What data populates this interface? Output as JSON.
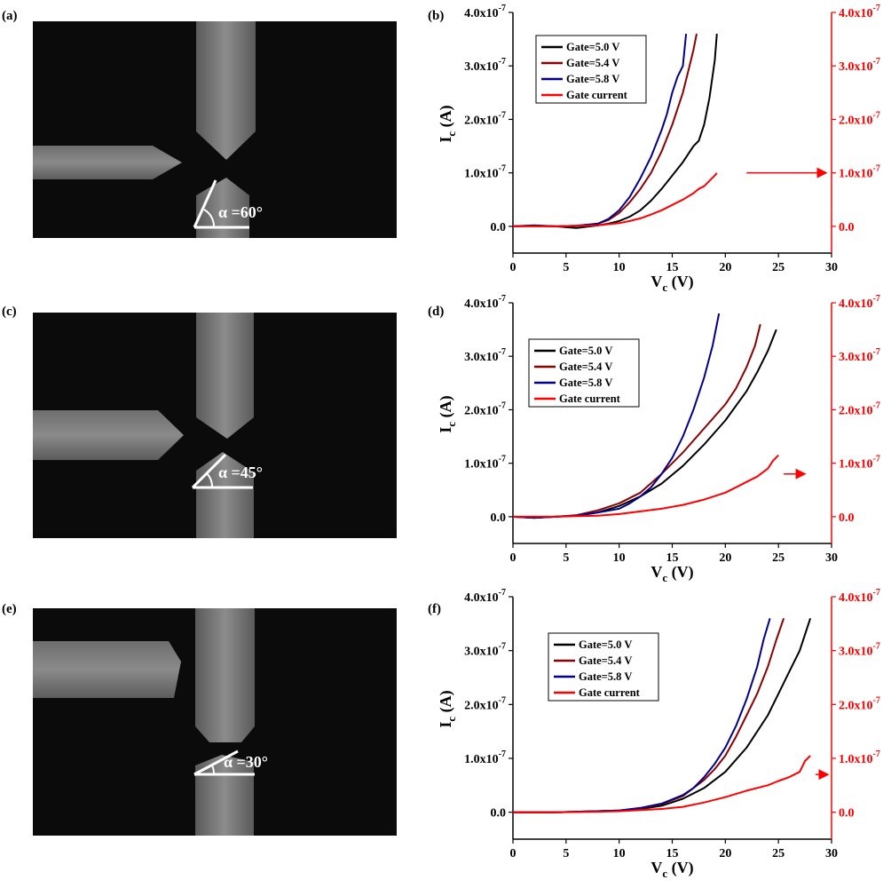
{
  "panel_labels": [
    "(a)",
    "(b)",
    "(c)",
    "(d)",
    "(e)",
    "(f)"
  ],
  "micrographs": [
    {
      "angle_label": "α =60°",
      "angle_deg": 60
    },
    {
      "angle_label": "α =45°",
      "angle_deg": 45
    },
    {
      "angle_label": "α =30°",
      "angle_deg": 30
    }
  ],
  "colors": {
    "gate_5_0": "#000000",
    "gate_5_4": "#8b0000",
    "gate_5_8": "#00008b",
    "gate_current": "#ff0000",
    "right_axis": "#ff0000"
  },
  "chart_data": [
    {
      "type": "line",
      "panel": "(b)",
      "xlabel_main": "V",
      "xlabel_sub": "c",
      "xlabel_unit": " (V)",
      "ylabel_main": "I",
      "ylabel_sub": "c",
      "ylabel_unit": " (A)",
      "xlim": [
        0,
        30
      ],
      "ylim": [
        -0.05,
        0.4
      ],
      "ylim_right": [
        -0.05,
        0.4
      ],
      "xticks": [
        0,
        5,
        10,
        15,
        20,
        25,
        30
      ],
      "yticks_left": [
        "0.0",
        "1.0x10",
        "2.0x10",
        "3.0x10",
        "4.0x10"
      ],
      "yticks_right": [
        "0.0",
        "1.0x10",
        "2.0x10",
        "3.0x10",
        "4.0x10"
      ],
      "ytick_exponent": "-7",
      "ytick_values": [
        0,
        0.1,
        0.2,
        0.3,
        0.4
      ],
      "y_scale_note": "y values in units of 1e-6 A",
      "legend": [
        "Gate=5.0 V",
        "Gate=5.4 V",
        "Gate=5.8 V",
        "Gate current"
      ],
      "legend_position": "top-left",
      "arrow": {
        "x_from": 22,
        "x_to": 29.5,
        "y": 0.1
      },
      "series": [
        {
          "name": "Gate=5.0 V",
          "x": [
            0,
            2,
            4,
            6,
            8,
            9,
            10,
            11,
            12,
            13,
            14,
            15,
            16,
            17,
            17.5,
            18,
            18.5,
            19,
            19.2
          ],
          "y": [
            0,
            0.002,
            0,
            -0.003,
            0.002,
            0.005,
            0.01,
            0.018,
            0.03,
            0.048,
            0.07,
            0.095,
            0.12,
            0.15,
            0.16,
            0.19,
            0.24,
            0.31,
            0.36
          ]
        },
        {
          "name": "Gate=5.4 V",
          "x": [
            0,
            2,
            4,
            6,
            8,
            9,
            10,
            11,
            12,
            13,
            14,
            15,
            16,
            16.5,
            17,
            17.3
          ],
          "y": [
            0,
            0.001,
            0,
            0.001,
            0.005,
            0.012,
            0.025,
            0.045,
            0.07,
            0.1,
            0.14,
            0.19,
            0.25,
            0.29,
            0.33,
            0.36
          ]
        },
        {
          "name": "Gate=5.8 V",
          "x": [
            0,
            2,
            4,
            6,
            8,
            9,
            10,
            11,
            12,
            13,
            14,
            14.5,
            15,
            15.5,
            16,
            16.3
          ],
          "y": [
            0,
            0.001,
            0,
            0.001,
            0.005,
            0.014,
            0.03,
            0.055,
            0.09,
            0.13,
            0.18,
            0.21,
            0.25,
            0.28,
            0.3,
            0.36
          ]
        },
        {
          "name": "Gate current",
          "x": [
            0,
            2,
            4,
            6,
            8,
            10,
            11,
            12,
            13,
            14,
            15,
            16,
            17,
            17.5,
            18,
            18.5,
            19,
            19.2
          ],
          "y": [
            0,
            0,
            0,
            0.001,
            0.002,
            0.006,
            0.01,
            0.015,
            0.022,
            0.03,
            0.04,
            0.05,
            0.062,
            0.07,
            0.075,
            0.085,
            0.095,
            0.1
          ]
        }
      ]
    },
    {
      "type": "line",
      "panel": "(d)",
      "xlabel_main": "V",
      "xlabel_sub": "c",
      "xlabel_unit": " (V)",
      "ylabel_main": "I",
      "ylabel_sub": "c",
      "ylabel_unit": " (A)",
      "xlim": [
        0,
        30
      ],
      "ylim": [
        -0.05,
        0.4
      ],
      "ylim_right": [
        -0.05,
        0.4
      ],
      "xticks": [
        0,
        5,
        10,
        15,
        20,
        25,
        30
      ],
      "yticks_left": [
        "0.0",
        "1.0x10",
        "2.0x10",
        "3.0x10",
        "4.0x10"
      ],
      "yticks_right": [
        "0.0",
        "1.0x10",
        "2.0x10",
        "3.0x10",
        "4.0x10"
      ],
      "ytick_exponent": "-7",
      "ytick_values": [
        0,
        0.1,
        0.2,
        0.3,
        0.4
      ],
      "y_scale_note": "y values in units of 1e-6 A",
      "legend": [
        "Gate=5.0 V",
        "Gate=5.4 V",
        "Gate=5.8 V",
        "Gate current"
      ],
      "legend_position": "top-left",
      "arrow": {
        "x_from": 25.5,
        "x_to": 27.5,
        "y": 0.08
      },
      "series": [
        {
          "name": "Gate=5.0 V",
          "x": [
            0,
            2,
            4,
            6,
            8,
            10,
            12,
            14,
            16,
            18,
            20,
            22,
            23,
            24,
            24.8
          ],
          "y": [
            0,
            -0.002,
            0,
            0.002,
            0.008,
            0.02,
            0.038,
            0.062,
            0.095,
            0.135,
            0.18,
            0.235,
            0.27,
            0.31,
            0.35
          ]
        },
        {
          "name": "Gate=5.4 V",
          "x": [
            0,
            2,
            4,
            6,
            8,
            10,
            12,
            14,
            16,
            18,
            20,
            21,
            22,
            22.8,
            23.3
          ],
          "y": [
            0,
            -0.002,
            0,
            0.003,
            0.012,
            0.025,
            0.045,
            0.08,
            0.12,
            0.165,
            0.21,
            0.24,
            0.28,
            0.32,
            0.36
          ]
        },
        {
          "name": "Gate=5.8 V",
          "x": [
            0,
            2,
            4,
            6,
            8,
            10,
            11,
            12,
            13,
            14,
            15,
            16,
            17,
            18,
            18.8,
            19.4
          ],
          "y": [
            0,
            -0.002,
            0,
            0.002,
            0.008,
            0.015,
            0.025,
            0.038,
            0.055,
            0.08,
            0.11,
            0.15,
            0.2,
            0.26,
            0.32,
            0.38
          ]
        },
        {
          "name": "Gate current",
          "x": [
            0,
            4,
            8,
            10,
            12,
            14,
            16,
            18,
            20,
            21,
            22,
            23,
            24,
            24.5,
            25
          ],
          "y": [
            0,
            0,
            0.002,
            0.005,
            0.01,
            0.015,
            0.022,
            0.032,
            0.045,
            0.055,
            0.065,
            0.075,
            0.09,
            0.105,
            0.115
          ]
        }
      ]
    },
    {
      "type": "line",
      "panel": "(f)",
      "xlabel_main": "V",
      "xlabel_sub": "c",
      "xlabel_unit": " (V)",
      "ylabel_main": "I",
      "ylabel_sub": "c",
      "ylabel_unit": " (A)",
      "xlim": [
        0,
        30
      ],
      "ylim": [
        -0.05,
        0.4
      ],
      "ylim_right": [
        -0.05,
        0.4
      ],
      "xticks": [
        0,
        5,
        10,
        15,
        20,
        25,
        30
      ],
      "yticks_left": [
        "0.0",
        "1.0x10",
        "2.0x10",
        "3.0x10",
        "4.0x10"
      ],
      "yticks_right": [
        "0.0",
        "1.0x10",
        "2.0x10",
        "3.0x10",
        "4.0x10"
      ],
      "ytick_exponent": "-7",
      "ytick_values": [
        0,
        0.1,
        0.2,
        0.3,
        0.4
      ],
      "y_scale_note": "y values in units of 1e-6 A",
      "legend": [
        "Gate=5.0 V",
        "Gate=5.4 V",
        "Gate=5.8 V",
        "Gate current"
      ],
      "legend_position": "top-left",
      "arrow": {
        "x_from": 28.5,
        "x_to": 30,
        "y": 0.07
      },
      "series": [
        {
          "name": "Gate=5.0 V",
          "x": [
            0,
            4,
            8,
            10,
            12,
            14,
            16,
            18,
            20,
            22,
            24,
            25,
            26,
            27,
            27.5,
            28
          ],
          "y": [
            0,
            0,
            0.002,
            0.003,
            0.006,
            0.012,
            0.025,
            0.045,
            0.075,
            0.12,
            0.18,
            0.22,
            0.26,
            0.3,
            0.33,
            0.36
          ]
        },
        {
          "name": "Gate=5.4 V",
          "x": [
            0,
            4,
            8,
            10,
            12,
            14,
            16,
            18,
            19,
            20,
            21,
            22,
            23,
            24,
            24.8,
            25.5
          ],
          "y": [
            0,
            0,
            0.002,
            0.003,
            0.007,
            0.015,
            0.03,
            0.06,
            0.08,
            0.105,
            0.14,
            0.18,
            0.22,
            0.27,
            0.32,
            0.36
          ]
        },
        {
          "name": "Gate=5.8 V",
          "x": [
            0,
            4,
            8,
            10,
            12,
            14,
            16,
            17,
            18,
            19,
            20,
            21,
            22,
            23,
            23.6,
            24.2
          ],
          "y": [
            0,
            0,
            0.002,
            0.003,
            0.008,
            0.016,
            0.032,
            0.045,
            0.065,
            0.09,
            0.12,
            0.16,
            0.21,
            0.27,
            0.32,
            0.36
          ]
        },
        {
          "name": "Gate current",
          "x": [
            0,
            4,
            8,
            10,
            12,
            14,
            16,
            18,
            20,
            22,
            24,
            25,
            26,
            27,
            27.5,
            28
          ],
          "y": [
            0,
            0,
            0.001,
            0.002,
            0.004,
            0.006,
            0.01,
            0.018,
            0.028,
            0.04,
            0.05,
            0.058,
            0.065,
            0.075,
            0.095,
            0.105
          ]
        }
      ]
    }
  ]
}
